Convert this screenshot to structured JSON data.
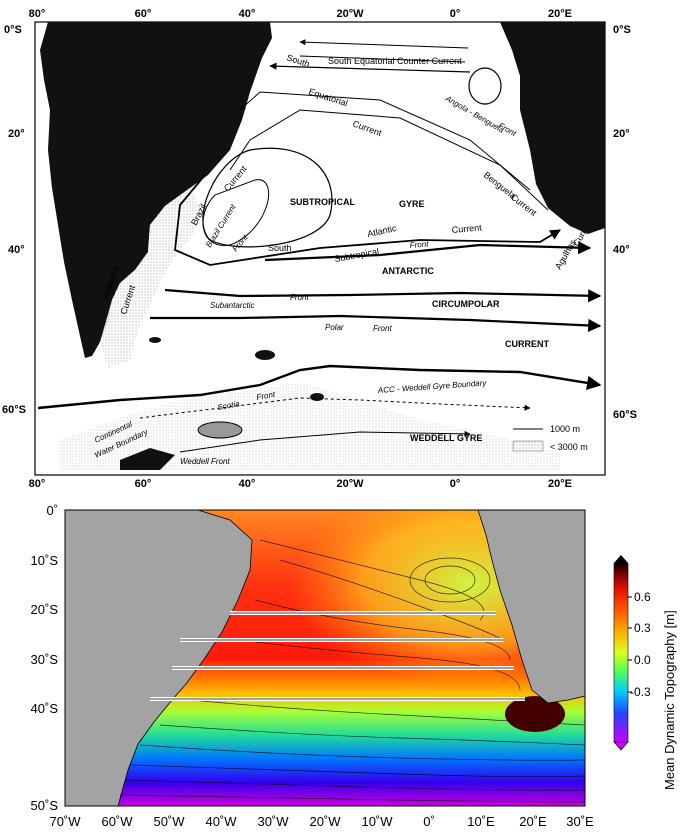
{
  "top_map": {
    "x_ticks_top": [
      "80°",
      "60°",
      "40°",
      "20°W",
      "0°",
      "20°E"
    ],
    "x_ticks_bottom": [
      "80°",
      "60°",
      "40°",
      "20°W",
      "0°",
      "20°E"
    ],
    "y_ticks_left": [
      "0°S",
      "20°",
      "40°",
      "60°S"
    ],
    "y_ticks_right": [
      "0°S",
      "20°",
      "40°",
      "60°S"
    ],
    "labels": {
      "south": "South",
      "secc": "South Equatorial Counter Current",
      "equatorial": "Equatorial",
      "current1": "Current",
      "angola": "Angola - Benguela",
      "front_angola": "Front",
      "benguela": "Benguela",
      "current_bg": "Current",
      "brazil": "Brazil",
      "current_br": "Current",
      "subtropical_gyre1": "SUBTROPICAL",
      "subtropical_gyre2": "GYRE",
      "brazil_current_front1": "Brazil Current",
      "brazil_current_front2": "Front",
      "south2": "South",
      "subtropical": "Subtropical",
      "atlantic": "Atlantic",
      "current_sa": "Current",
      "front_sa": "Front",
      "agulhas": "Agulhas",
      "curr": "Curr.",
      "falkland": "Falkland",
      "current_fk": "Current",
      "antarctic": "ANTARCTIC",
      "subantarctic": "Subantarctic",
      "front_sub": "Front",
      "circumpolar": "CIRCUMPOLAR",
      "polar": "Polar",
      "front_polar": "Front",
      "current_acc": "CURRENT",
      "scotia": "Scotia",
      "front_scotia": "Front",
      "acc_boundary": "ACC - Weddell Gyre Boundary",
      "cwb1": "Continental",
      "cwb2": "Water Boundary",
      "weddell_front": "Weddell Front",
      "weddell_gyre": "WEDDELL GYRE"
    },
    "legend": {
      "line_label": "1000 m",
      "shade_label": "< 3000 m"
    }
  },
  "bottom_map": {
    "x_ticks": [
      "70˚W",
      "60˚W",
      "50˚W",
      "40˚W",
      "30˚W",
      "20˚W",
      "10˚W",
      "0˚",
      "10˚E",
      "20˚E",
      "30˚E"
    ],
    "y_ticks": [
      "0˚",
      "10˚S",
      "20˚S",
      "30˚S",
      "40˚S",
      "50˚S"
    ],
    "colorbar": {
      "label": "Mean Dynamic Topography [m]",
      "ticks": [
        "0.6",
        "0.3",
        "0.0",
        "-0.3"
      ],
      "range": [
        -0.5,
        0.8
      ],
      "colors": [
        "#cc00ff",
        "#3333ff",
        "#00ccff",
        "#33ff66",
        "#ccff33",
        "#ffcc00",
        "#ff6600",
        "#ee1100",
        "#550000"
      ]
    },
    "sections_lat": [
      "20˚S",
      "25˚S",
      "30˚S",
      "34.5˚S"
    ]
  }
}
